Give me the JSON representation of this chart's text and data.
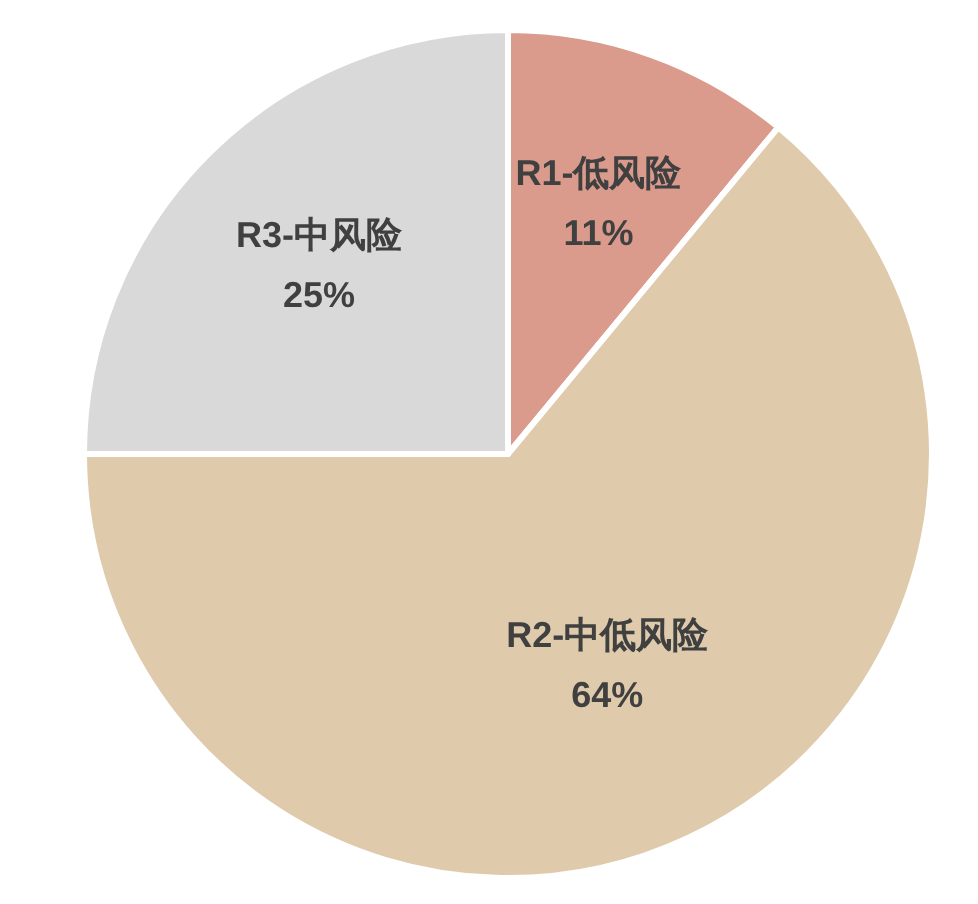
{
  "chart_data": {
    "type": "pie",
    "categories": [
      "R1-低风险",
      "R2-中低风险",
      "R3-中风险"
    ],
    "values": [
      11,
      64,
      25
    ],
    "value_labels": [
      "11%",
      "64%",
      "25%"
    ],
    "colors": [
      "#da9b8c",
      "#dfcbac",
      "#d9d9d9"
    ]
  }
}
